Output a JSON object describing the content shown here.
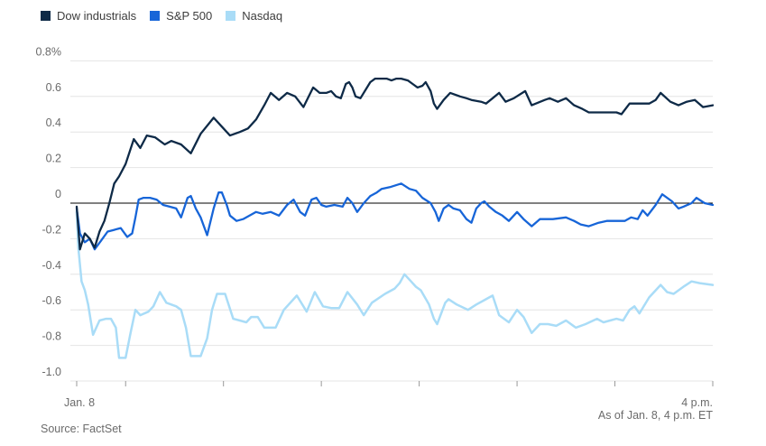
{
  "footer": {
    "source": "Source: FactSet",
    "as_of": "As of Jan. 8, 4 p.m. ET"
  },
  "chart_data": {
    "type": "line",
    "title": "",
    "xlabel": "",
    "ylabel": "",
    "grid": "horizontal",
    "legend_position": "top-left",
    "x_axis": {
      "start_label": "Jan. 8",
      "end_label": "4 p.m.",
      "start_minutes": 0,
      "end_minutes": 390,
      "tick_minutes": [
        0,
        30,
        90,
        150,
        210,
        270,
        330,
        390
      ]
    },
    "y_axis": {
      "unit": "%",
      "min": -1.0,
      "max": 0.8,
      "tick_labels": [
        "0.8%",
        "0.6",
        "0.4",
        "0.2",
        "0",
        "-0.2",
        "-0.4",
        "-0.6",
        "-0.8",
        "-1.0"
      ],
      "tick_values": [
        0.8,
        0.6,
        0.4,
        0.2,
        0,
        -0.2,
        -0.4,
        -0.6,
        -0.8,
        -1.0
      ],
      "zero_line": true
    },
    "series": [
      {
        "id": "dow",
        "name": "Dow industrials",
        "color": "#0e2a47",
        "points": [
          [
            0,
            -0.02
          ],
          [
            2,
            -0.26
          ],
          [
            5,
            -0.17
          ],
          [
            8,
            -0.2
          ],
          [
            11,
            -0.25
          ],
          [
            14,
            -0.16
          ],
          [
            17,
            -0.1
          ],
          [
            20,
            0.0
          ],
          [
            23,
            0.11
          ],
          [
            26,
            0.15
          ],
          [
            30,
            0.22
          ],
          [
            35,
            0.36
          ],
          [
            39,
            0.31
          ],
          [
            43,
            0.38
          ],
          [
            48,
            0.37
          ],
          [
            54,
            0.33
          ],
          [
            58,
            0.35
          ],
          [
            64,
            0.33
          ],
          [
            70,
            0.28
          ],
          [
            76,
            0.39
          ],
          [
            84,
            0.48
          ],
          [
            89,
            0.43
          ],
          [
            94,
            0.38
          ],
          [
            100,
            0.4
          ],
          [
            105,
            0.42
          ],
          [
            110,
            0.47
          ],
          [
            115,
            0.55
          ],
          [
            119,
            0.62
          ],
          [
            124,
            0.58
          ],
          [
            129,
            0.62
          ],
          [
            134,
            0.6
          ],
          [
            139,
            0.54
          ],
          [
            145,
            0.65
          ],
          [
            149,
            0.62
          ],
          [
            153,
            0.62
          ],
          [
            156,
            0.63
          ],
          [
            159,
            0.6
          ],
          [
            162,
            0.59
          ],
          [
            165,
            0.67
          ],
          [
            167,
            0.68
          ],
          [
            169,
            0.65
          ],
          [
            171,
            0.6
          ],
          [
            174,
            0.59
          ],
          [
            180,
            0.68
          ],
          [
            183,
            0.7
          ],
          [
            186,
            0.7
          ],
          [
            190,
            0.7
          ],
          [
            193,
            0.69
          ],
          [
            196,
            0.7
          ],
          [
            199,
            0.7
          ],
          [
            203,
            0.69
          ],
          [
            206,
            0.67
          ],
          [
            209,
            0.65
          ],
          [
            212,
            0.66
          ],
          [
            214,
            0.68
          ],
          [
            217,
            0.63
          ],
          [
            219,
            0.56
          ],
          [
            221,
            0.53
          ],
          [
            225,
            0.58
          ],
          [
            229,
            0.62
          ],
          [
            235,
            0.6
          ],
          [
            239,
            0.59
          ],
          [
            242,
            0.58
          ],
          [
            248,
            0.57
          ],
          [
            251,
            0.56
          ],
          [
            255,
            0.59
          ],
          [
            259,
            0.62
          ],
          [
            263,
            0.57
          ],
          [
            268,
            0.59
          ],
          [
            275,
            0.63
          ],
          [
            279,
            0.55
          ],
          [
            287,
            0.58
          ],
          [
            290,
            0.59
          ],
          [
            295,
            0.57
          ],
          [
            300,
            0.59
          ],
          [
            305,
            0.55
          ],
          [
            310,
            0.53
          ],
          [
            314,
            0.51
          ],
          [
            320,
            0.51
          ],
          [
            326,
            0.51
          ],
          [
            331,
            0.51
          ],
          [
            334,
            0.5
          ],
          [
            339,
            0.56
          ],
          [
            345,
            0.56
          ],
          [
            351,
            0.56
          ],
          [
            355,
            0.58
          ],
          [
            358,
            0.62
          ],
          [
            364,
            0.57
          ],
          [
            369,
            0.55
          ],
          [
            374,
            0.57
          ],
          [
            379,
            0.58
          ],
          [
            384,
            0.54
          ],
          [
            390,
            0.55
          ]
        ]
      },
      {
        "id": "sp500",
        "name": "S&P 500",
        "color": "#1765d8",
        "points": [
          [
            0,
            -0.03
          ],
          [
            2,
            -0.17
          ],
          [
            5,
            -0.22
          ],
          [
            8,
            -0.2
          ],
          [
            11,
            -0.26
          ],
          [
            15,
            -0.21
          ],
          [
            19,
            -0.16
          ],
          [
            23,
            -0.15
          ],
          [
            27,
            -0.14
          ],
          [
            31,
            -0.19
          ],
          [
            34,
            -0.17
          ],
          [
            36,
            -0.08
          ],
          [
            38,
            0.02
          ],
          [
            41,
            0.03
          ],
          [
            45,
            0.03
          ],
          [
            49,
            0.02
          ],
          [
            53,
            -0.01
          ],
          [
            57,
            -0.02
          ],
          [
            61,
            -0.03
          ],
          [
            64,
            -0.08
          ],
          [
            68,
            0.03
          ],
          [
            70,
            0.04
          ],
          [
            73,
            -0.03
          ],
          [
            76,
            -0.08
          ],
          [
            80,
            -0.18
          ],
          [
            84,
            -0.03
          ],
          [
            87,
            0.06
          ],
          [
            89,
            0.06
          ],
          [
            92,
            -0.01
          ],
          [
            94,
            -0.07
          ],
          [
            98,
            -0.1
          ],
          [
            102,
            -0.09
          ],
          [
            106,
            -0.07
          ],
          [
            110,
            -0.05
          ],
          [
            114,
            -0.06
          ],
          [
            119,
            -0.05
          ],
          [
            124,
            -0.07
          ],
          [
            129,
            -0.01
          ],
          [
            133,
            0.02
          ],
          [
            137,
            -0.05
          ],
          [
            140,
            -0.07
          ],
          [
            144,
            0.02
          ],
          [
            147,
            0.03
          ],
          [
            150,
            -0.01
          ],
          [
            153,
            -0.02
          ],
          [
            158,
            -0.01
          ],
          [
            163,
            -0.02
          ],
          [
            166,
            0.03
          ],
          [
            169,
            0.0
          ],
          [
            172,
            -0.05
          ],
          [
            176,
            0.0
          ],
          [
            180,
            0.04
          ],
          [
            184,
            0.06
          ],
          [
            187,
            0.08
          ],
          [
            192,
            0.09
          ],
          [
            199,
            0.11
          ],
          [
            204,
            0.08
          ],
          [
            208,
            0.07
          ],
          [
            212,
            0.03
          ],
          [
            217,
            0.0
          ],
          [
            220,
            -0.05
          ],
          [
            222,
            -0.1
          ],
          [
            225,
            -0.03
          ],
          [
            228,
            -0.01
          ],
          [
            231,
            -0.03
          ],
          [
            235,
            -0.04
          ],
          [
            239,
            -0.09
          ],
          [
            242,
            -0.11
          ],
          [
            245,
            -0.03
          ],
          [
            248,
            0.0
          ],
          [
            250,
            0.01
          ],
          [
            253,
            -0.02
          ],
          [
            257,
            -0.05
          ],
          [
            261,
            -0.07
          ],
          [
            265,
            -0.1
          ],
          [
            270,
            -0.05
          ],
          [
            274,
            -0.09
          ],
          [
            279,
            -0.13
          ],
          [
            284,
            -0.09
          ],
          [
            292,
            -0.09
          ],
          [
            300,
            -0.08
          ],
          [
            305,
            -0.1
          ],
          [
            309,
            -0.12
          ],
          [
            314,
            -0.13
          ],
          [
            320,
            -0.11
          ],
          [
            325,
            -0.1
          ],
          [
            330,
            -0.1
          ],
          [
            336,
            -0.1
          ],
          [
            340,
            -0.08
          ],
          [
            344,
            -0.09
          ],
          [
            347,
            -0.04
          ],
          [
            350,
            -0.07
          ],
          [
            355,
            -0.01
          ],
          [
            359,
            0.05
          ],
          [
            365,
            0.01
          ],
          [
            369,
            -0.03
          ],
          [
            372,
            -0.02
          ],
          [
            377,
            0.0
          ],
          [
            380,
            0.03
          ],
          [
            385,
            0.0
          ],
          [
            390,
            -0.01
          ]
        ]
      },
      {
        "id": "nasdaq",
        "name": "Nasdaq",
        "color": "#a9dcf7",
        "points": [
          [
            0,
            -0.05
          ],
          [
            1,
            -0.25
          ],
          [
            3,
            -0.44
          ],
          [
            5,
            -0.49
          ],
          [
            7,
            -0.57
          ],
          [
            10,
            -0.74
          ],
          [
            12,
            -0.7
          ],
          [
            14,
            -0.66
          ],
          [
            18,
            -0.65
          ],
          [
            21,
            -0.65
          ],
          [
            24,
            -0.7
          ],
          [
            26,
            -0.87
          ],
          [
            30,
            -0.87
          ],
          [
            33,
            -0.73
          ],
          [
            36,
            -0.6
          ],
          [
            39,
            -0.63
          ],
          [
            44,
            -0.61
          ],
          [
            47,
            -0.58
          ],
          [
            51,
            -0.5
          ],
          [
            55,
            -0.56
          ],
          [
            58,
            -0.57
          ],
          [
            61,
            -0.58
          ],
          [
            64,
            -0.6
          ],
          [
            67,
            -0.7
          ],
          [
            70,
            -0.86
          ],
          [
            76,
            -0.86
          ],
          [
            80,
            -0.76
          ],
          [
            83,
            -0.6
          ],
          [
            86,
            -0.51
          ],
          [
            91,
            -0.51
          ],
          [
            96,
            -0.65
          ],
          [
            100,
            -0.66
          ],
          [
            104,
            -0.67
          ],
          [
            107,
            -0.64
          ],
          [
            111,
            -0.64
          ],
          [
            115,
            -0.7
          ],
          [
            122,
            -0.7
          ],
          [
            127,
            -0.6
          ],
          [
            135,
            -0.52
          ],
          [
            141,
            -0.61
          ],
          [
            146,
            -0.5
          ],
          [
            151,
            -0.58
          ],
          [
            156,
            -0.59
          ],
          [
            161,
            -0.59
          ],
          [
            166,
            -0.5
          ],
          [
            172,
            -0.57
          ],
          [
            176,
            -0.63
          ],
          [
            181,
            -0.56
          ],
          [
            189,
            -0.51
          ],
          [
            195,
            -0.48
          ],
          [
            198,
            -0.45
          ],
          [
            201,
            -0.4
          ],
          [
            205,
            -0.44
          ],
          [
            208,
            -0.47
          ],
          [
            211,
            -0.49
          ],
          [
            216,
            -0.57
          ],
          [
            219,
            -0.65
          ],
          [
            221,
            -0.68
          ],
          [
            226,
            -0.56
          ],
          [
            228,
            -0.54
          ],
          [
            233,
            -0.57
          ],
          [
            240,
            -0.6
          ],
          [
            245,
            -0.57
          ],
          [
            249,
            -0.55
          ],
          [
            253,
            -0.53
          ],
          [
            255,
            -0.52
          ],
          [
            259,
            -0.63
          ],
          [
            265,
            -0.67
          ],
          [
            270,
            -0.6
          ],
          [
            274,
            -0.64
          ],
          [
            279,
            -0.73
          ],
          [
            284,
            -0.68
          ],
          [
            289,
            -0.68
          ],
          [
            294,
            -0.69
          ],
          [
            300,
            -0.66
          ],
          [
            306,
            -0.7
          ],
          [
            312,
            -0.68
          ],
          [
            319,
            -0.65
          ],
          [
            323,
            -0.67
          ],
          [
            327,
            -0.66
          ],
          [
            331,
            -0.65
          ],
          [
            335,
            -0.66
          ],
          [
            339,
            -0.6
          ],
          [
            342,
            -0.58
          ],
          [
            345,
            -0.62
          ],
          [
            351,
            -0.53
          ],
          [
            358,
            -0.46
          ],
          [
            362,
            -0.5
          ],
          [
            366,
            -0.51
          ],
          [
            372,
            -0.47
          ],
          [
            377,
            -0.44
          ],
          [
            382,
            -0.45
          ],
          [
            390,
            -0.46
          ]
        ]
      }
    ]
  }
}
